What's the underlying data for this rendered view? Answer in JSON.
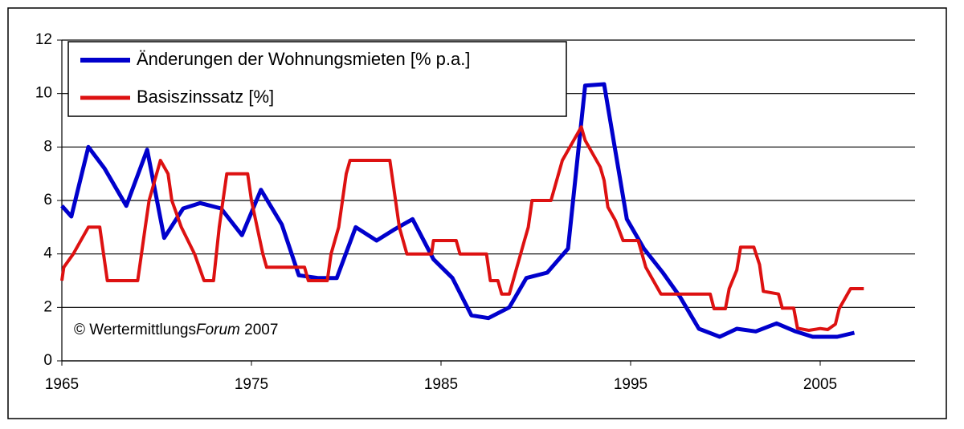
{
  "chart_data": {
    "type": "line",
    "annotation": {
      "prefix": "© Wertermittlungs",
      "italic": "Forum",
      "suffix": " 2007"
    },
    "xlim": [
      1965,
      2010
    ],
    "xticks": [
      1965,
      1975,
      1985,
      1995,
      2005
    ],
    "ylim": [
      0,
      12
    ],
    "yticks": [
      0,
      2,
      4,
      6,
      8,
      10,
      12
    ],
    "grid": true,
    "series": [
      {
        "name": "Änderungen der Wohnungsmieten [% p.a.]",
        "color": "#0000cc",
        "x": [
          1965.0,
          1965.5,
          1966.4,
          1967.25,
          1968.4,
          1969.5,
          1970.4,
          1971.4,
          1972.3,
          1973.4,
          1974.5,
          1975.5,
          1976.6,
          1977.5,
          1978.5,
          1979.5,
          1980.5,
          1981.6,
          1982.5,
          1983.5,
          1984.6,
          1985.6,
          1986.6,
          1987.5,
          1988.6,
          1989.5,
          1990.6,
          1991.7,
          1992.6,
          1993.6,
          1994.8,
          1995.7,
          1996.7,
          1997.6,
          1998.6,
          1999.7,
          2000.6,
          2001.6,
          2002.7,
          2003.7,
          2004.6,
          2005.9,
          2006.8
        ],
        "values": [
          5.8,
          5.4,
          8.0,
          7.2,
          5.8,
          7.9,
          4.6,
          5.7,
          5.9,
          5.7,
          4.7,
          6.4,
          5.1,
          3.2,
          3.1,
          3.1,
          5.0,
          4.5,
          4.9,
          5.3,
          3.8,
          3.1,
          1.7,
          1.6,
          2.0,
          3.1,
          3.3,
          4.2,
          10.3,
          10.35,
          5.3,
          4.2,
          3.3,
          2.4,
          1.2,
          0.9,
          1.2,
          1.1,
          1.4,
          1.1,
          0.9,
          0.9,
          1.05
        ]
      },
      {
        "name": "Basiszinssatz [%]",
        "color": "#dd1111",
        "x": [
          1965.0,
          1965.1,
          1965.6,
          1966.4,
          1967.0,
          1967.2,
          1967.4,
          1969.0,
          1969.2,
          1969.4,
          1969.6,
          1970.2,
          1970.6,
          1970.8,
          1971.3,
          1972.0,
          1972.5,
          1973.0,
          1973.3,
          1973.5,
          1973.7,
          1974.8,
          1975.0,
          1975.3,
          1975.6,
          1975.8,
          1977.8,
          1978.0,
          1979.0,
          1979.2,
          1979.6,
          1979.8,
          1980.0,
          1980.2,
          1982.3,
          1982.6,
          1982.8,
          1983.2,
          1984.5,
          1984.6,
          1985.8,
          1986.0,
          1987.4,
          1987.6,
          1988.0,
          1988.2,
          1988.6,
          1988.8,
          1989.0,
          1989.2,
          1989.4,
          1989.6,
          1989.8,
          1990.8,
          1991.0,
          1991.4,
          1991.8,
          1992.4,
          1992.6,
          1993.0,
          1993.4,
          1993.6,
          1993.8,
          1994.2,
          1994.6,
          1995.4,
          1995.6,
          1995.8,
          1996.2,
          1996.6,
          1999.2,
          1999.4,
          2000.0,
          2000.2,
          2000.6,
          2000.8,
          2001.5,
          2001.8,
          2002.0,
          2002.8,
          2003.0,
          2003.6,
          2003.8,
          2004.4,
          2005.0,
          2005.4,
          2005.8,
          2006.0,
          2006.6,
          2007.3
        ],
        "values": [
          3.0,
          3.5,
          4.0,
          5.0,
          5.0,
          4.0,
          3.0,
          3.0,
          4.0,
          5.0,
          6.0,
          7.5,
          7.0,
          6.0,
          5.0,
          4.0,
          3.0,
          3.0,
          5.0,
          6.0,
          7.0,
          7.0,
          6.0,
          5.0,
          4.0,
          3.5,
          3.5,
          3.0,
          3.0,
          4.0,
          5.0,
          6.0,
          7.0,
          7.5,
          7.5,
          6.0,
          5.0,
          4.0,
          4.0,
          4.5,
          4.5,
          4.0,
          4.0,
          3.0,
          3.0,
          2.5,
          2.5,
          3.0,
          3.5,
          4.0,
          4.5,
          5.0,
          6.0,
          6.0,
          6.5,
          7.5,
          8.0,
          8.75,
          8.25,
          7.75,
          7.25,
          6.75,
          5.75,
          5.25,
          4.5,
          4.5,
          4.0,
          3.5,
          3.0,
          2.5,
          2.5,
          1.95,
          1.95,
          2.7,
          3.4,
          4.25,
          4.25,
          3.6,
          2.6,
          2.5,
          1.97,
          1.97,
          1.22,
          1.14,
          1.21,
          1.17,
          1.37,
          1.95,
          2.7,
          2.7
        ]
      }
    ]
  }
}
